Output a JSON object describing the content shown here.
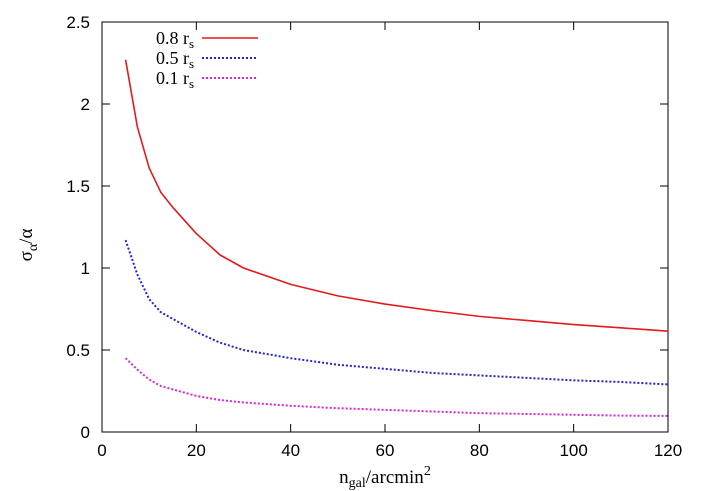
{
  "chart_data": {
    "type": "line",
    "xlabel": {
      "main": "n",
      "sub": "gal",
      "rest": "/arcmin",
      "sup": "2"
    },
    "ylabel": {
      "main": "σ",
      "sub": "α",
      "rest": "/α"
    },
    "xlim": [
      0,
      120
    ],
    "ylim": [
      0,
      2.5
    ],
    "xticks": [
      0,
      20,
      40,
      60,
      80,
      100,
      120
    ],
    "yticks": [
      0,
      0.5,
      1,
      1.5,
      2,
      2.5
    ],
    "xtick_labels": [
      "0",
      "20",
      "40",
      "60",
      "80",
      "100",
      "120"
    ],
    "ytick_labels": [
      "0",
      "0.5",
      "1",
      "1.5",
      "2",
      "2.5"
    ],
    "grid": false,
    "legend_position": "top-left",
    "x": [
      5,
      7.5,
      10,
      12.5,
      15,
      20,
      25,
      30,
      40,
      50,
      60,
      70,
      80,
      90,
      100,
      110,
      120
    ],
    "series": [
      {
        "name": "0.8 r",
        "name_sub": "s",
        "color": "#e41a1c",
        "style": "solid",
        "values": [
          2.27,
          1.86,
          1.61,
          1.46,
          1.37,
          1.21,
          1.08,
          1.0,
          0.9,
          0.83,
          0.78,
          0.74,
          0.705,
          0.68,
          0.655,
          0.635,
          0.615
        ]
      },
      {
        "name": "0.5 r",
        "name_sub": "s",
        "color": "#2222dd",
        "style": "dotted",
        "values": [
          1.17,
          0.96,
          0.81,
          0.73,
          0.69,
          0.61,
          0.545,
          0.5,
          0.45,
          0.41,
          0.385,
          0.36,
          0.345,
          0.33,
          0.315,
          0.305,
          0.29
        ]
      },
      {
        "name": "0.1 r",
        "name_sub": "s",
        "color": "#dd22dd",
        "style": "dotted",
        "values": [
          0.45,
          0.38,
          0.32,
          0.28,
          0.26,
          0.22,
          0.195,
          0.18,
          0.16,
          0.145,
          0.135,
          0.125,
          0.115,
          0.11,
          0.105,
          0.1,
          0.098
        ]
      }
    ]
  }
}
